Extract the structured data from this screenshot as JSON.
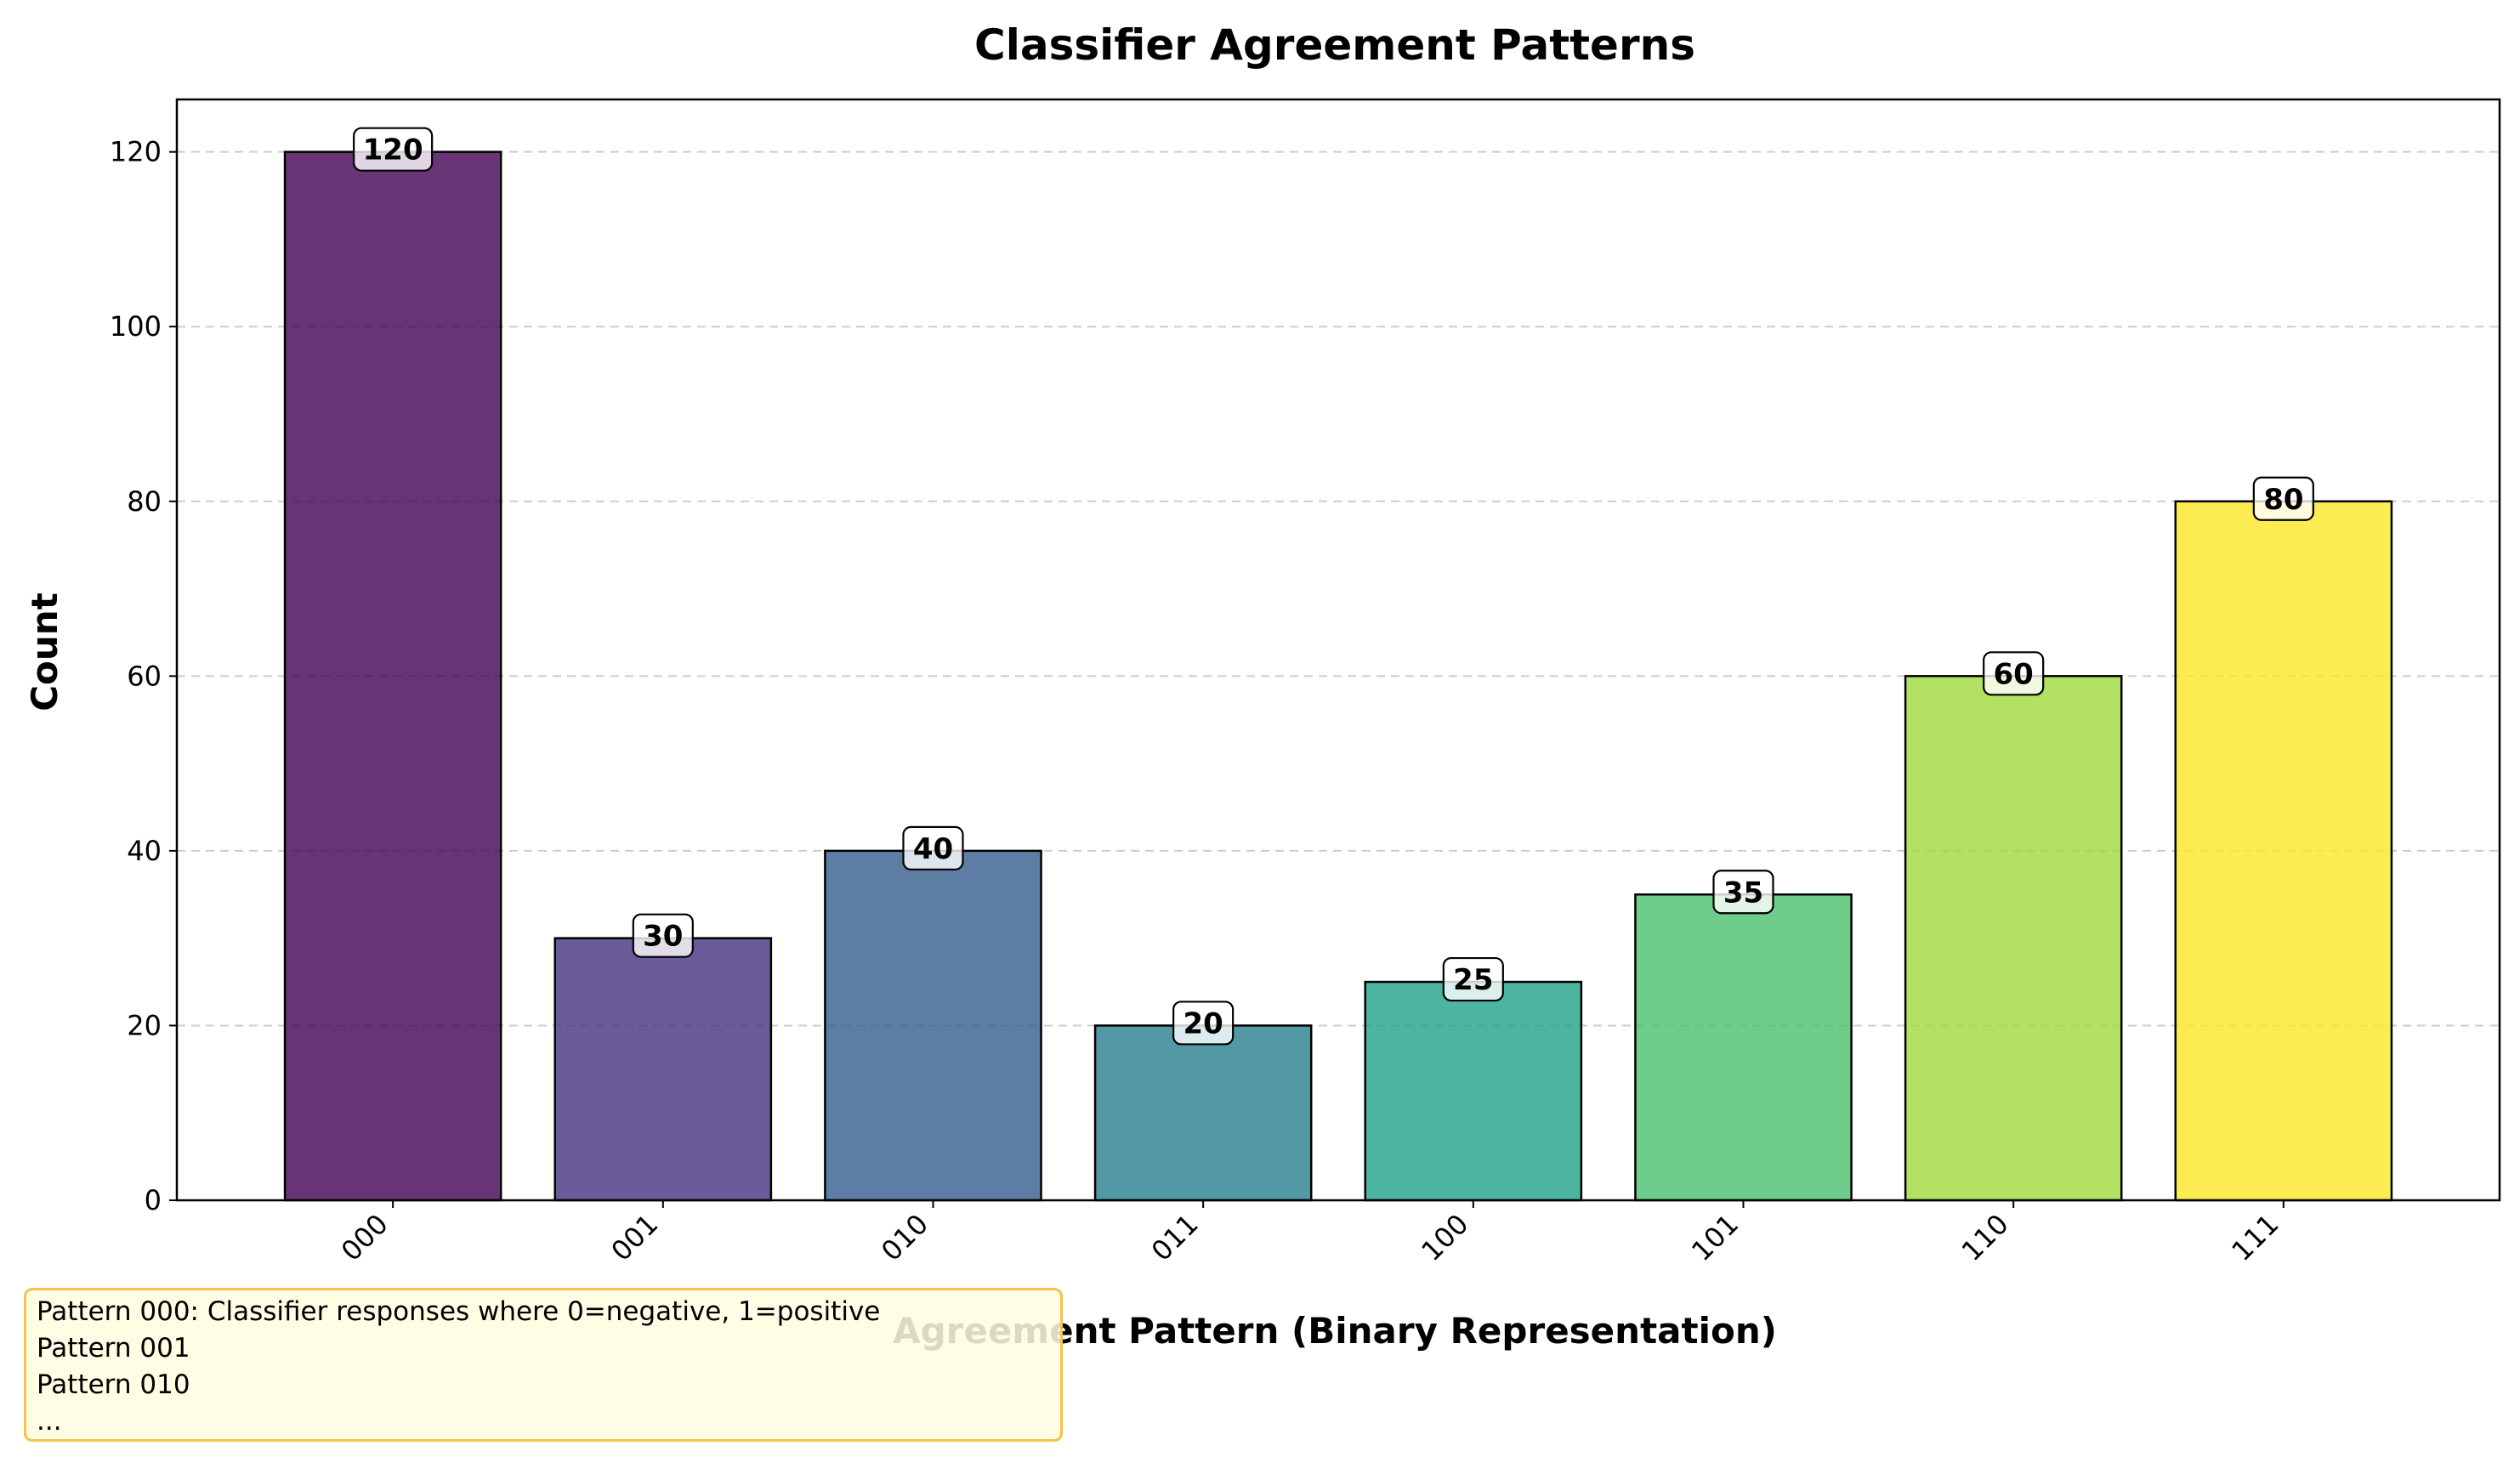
{
  "chart_data": {
    "type": "bar",
    "title": "Classifier Agreement Patterns",
    "xlabel": "Agreement Pattern (Binary Representation)",
    "ylabel": "Count",
    "categories": [
      "000",
      "001",
      "010",
      "011",
      "100",
      "101",
      "110",
      "111"
    ],
    "values": [
      120,
      30,
      40,
      20,
      25,
      35,
      60,
      80
    ],
    "data_labels": [
      "120",
      "30",
      "40",
      "20",
      "25",
      "35",
      "60",
      "80"
    ],
    "ylim": [
      0,
      126
    ],
    "yticks": [
      0,
      20,
      40,
      60,
      80,
      100,
      120
    ],
    "ytick_labels": [
      "0",
      "20",
      "40",
      "60",
      "80",
      "100",
      "120"
    ],
    "grid": "y dashed",
    "colors": [
      "#440154",
      "#46327e",
      "#365c8d",
      "#277f8e",
      "#1fa187",
      "#4ac16d",
      "#a0da39",
      "#fde725"
    ],
    "note": {
      "lines": [
        "Pattern 000: Classifier responses where 0=negative, 1=positive",
        "Pattern 001",
        "Pattern 010",
        "..."
      ]
    }
  }
}
